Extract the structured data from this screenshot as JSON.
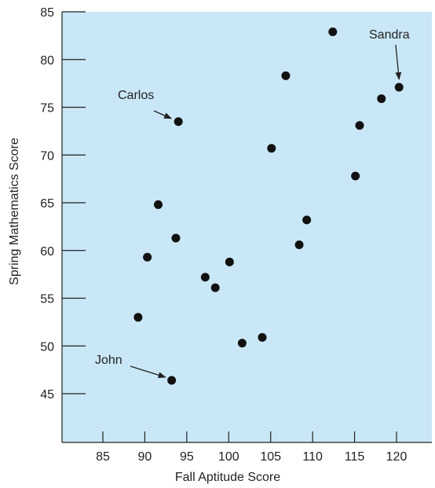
{
  "chart_data": {
    "type": "scatter",
    "title": "",
    "xlabel": "Fall Aptitude Score",
    "ylabel": "Spring Mathematics Score",
    "xlim": [
      80,
      125
    ],
    "ylim": [
      40,
      85
    ],
    "x_ticks": [
      85,
      90,
      95,
      100,
      105,
      110,
      115,
      120
    ],
    "y_ticks": [
      45,
      50,
      55,
      60,
      65,
      70,
      75,
      80,
      85
    ],
    "grid": false,
    "background_color": "#c9e7f7",
    "point_color": "#111111",
    "points": [
      {
        "x": 89.2,
        "y": 53.0
      },
      {
        "x": 90.3,
        "y": 59.3
      },
      {
        "x": 91.6,
        "y": 64.8
      },
      {
        "x": 93.2,
        "y": 46.4
      },
      {
        "x": 93.7,
        "y": 61.3
      },
      {
        "x": 94.0,
        "y": 73.5
      },
      {
        "x": 97.2,
        "y": 57.2
      },
      {
        "x": 98.4,
        "y": 56.1
      },
      {
        "x": 100.1,
        "y": 58.8
      },
      {
        "x": 101.6,
        "y": 50.3
      },
      {
        "x": 104.0,
        "y": 50.9
      },
      {
        "x": 105.1,
        "y": 70.7
      },
      {
        "x": 106.8,
        "y": 78.3
      },
      {
        "x": 108.4,
        "y": 60.6
      },
      {
        "x": 109.3,
        "y": 63.2
      },
      {
        "x": 112.4,
        "y": 82.9
      },
      {
        "x": 115.1,
        "y": 67.8
      },
      {
        "x": 115.6,
        "y": 73.1
      },
      {
        "x": 118.2,
        "y": 75.9
      },
      {
        "x": 120.3,
        "y": 77.1
      }
    ],
    "annotations": [
      {
        "label": "Carlos",
        "x": 94.0,
        "y": 73.5
      },
      {
        "label": "John",
        "x": 93.2,
        "y": 46.4
      },
      {
        "label": "Sandra",
        "x": 120.3,
        "y": 77.1
      }
    ]
  }
}
